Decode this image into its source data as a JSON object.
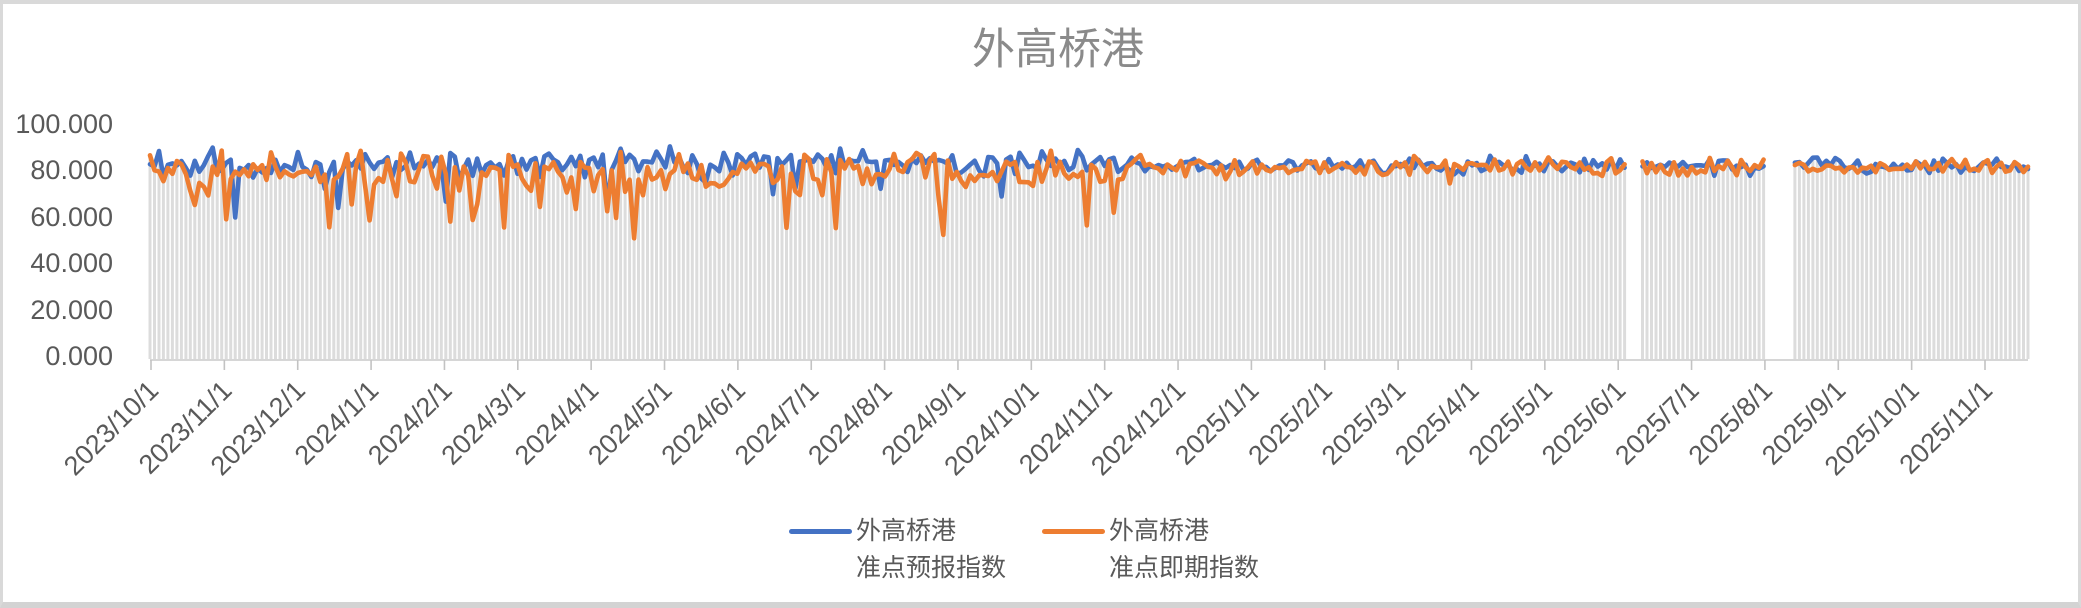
{
  "title_color": "#8a8a8a",
  "axis_color": "#595959",
  "chart_data": {
    "type": "line",
    "title": "外高桥港",
    "xlabel": "",
    "ylabel": "",
    "ylim": [
      0,
      100
    ],
    "ytick_step": 20,
    "yticks": [
      "100.000",
      "80.000",
      "60.000",
      "40.000",
      "20.000",
      "0.000"
    ],
    "xticks": [
      "2023/10/1",
      "2023/11/1",
      "2023/12/1",
      "2024/1/1",
      "2024/2/1",
      "2024/3/1",
      "2024/4/1",
      "2024/5/1",
      "2024/6/1",
      "2024/7/1",
      "2024/8/1",
      "2024/9/1",
      "2024/10/1",
      "2024/11/1",
      "2024/12/1",
      "2025/1/1",
      "2025/2/1",
      "2025/3/1",
      "2025/4/1",
      "2025/5/1",
      "2025/6/1",
      "2025/7/1",
      "2025/8/1",
      "2025/9/1",
      "2025/10/1",
      "2025/11/1"
    ],
    "x_start": "2023/10/1",
    "x_end": "2025/11/16",
    "grid": "none",
    "legend_position": "bottom-center",
    "xtick_rotation_deg": -45,
    "description": "Daily on-time index for Waigaoqiao port, two noisy line series hovering around 75-92 with frequent dips (orange dips as low as ~45) from Oct 2023 to late 2024, then both series converge into a tight 78-86 band through 2025; thin gray drop lines fall from each data point to the zero baseline; two short data gaps in early June 2025 and around the turn of July/August 2025.",
    "series": [
      {
        "label_line1": "外高桥港",
        "label_line2": "准点预报指数",
        "color": "#4472C4",
        "gen": {
          "mean_early": 83.4,
          "mean_late": 81.8,
          "noise_early": 3.0,
          "noise_late": 1.7,
          "dip_chance": 0.055,
          "dip_depth": 21,
          "min": 58,
          "max": 91.5
        }
      },
      {
        "label_line1": "外高桥港",
        "label_line2": "准点即期指数",
        "color": "#ED7D31",
        "gen": {
          "mean_early": 79.6,
          "mean_late": 81.4,
          "noise_early": 4.4,
          "noise_late": 1.8,
          "dip_chance": 0.17,
          "dip_depth": 32,
          "min": 44,
          "max": 92.5
        }
      }
    ],
    "droplines": {
      "color": "#DCDCDC"
    },
    "gaps_days": [
      [
        611,
        617
      ],
      [
        668,
        679
      ]
    ],
    "gaps_dates": [
      [
        "2025/6/3",
        "2025/6/9"
      ],
      [
        "2025/7/30",
        "2025/8/10"
      ]
    ],
    "calm_transition_days": [
      360,
      450
    ],
    "total_days": 777,
    "points": 420,
    "seed": 20231001
  }
}
